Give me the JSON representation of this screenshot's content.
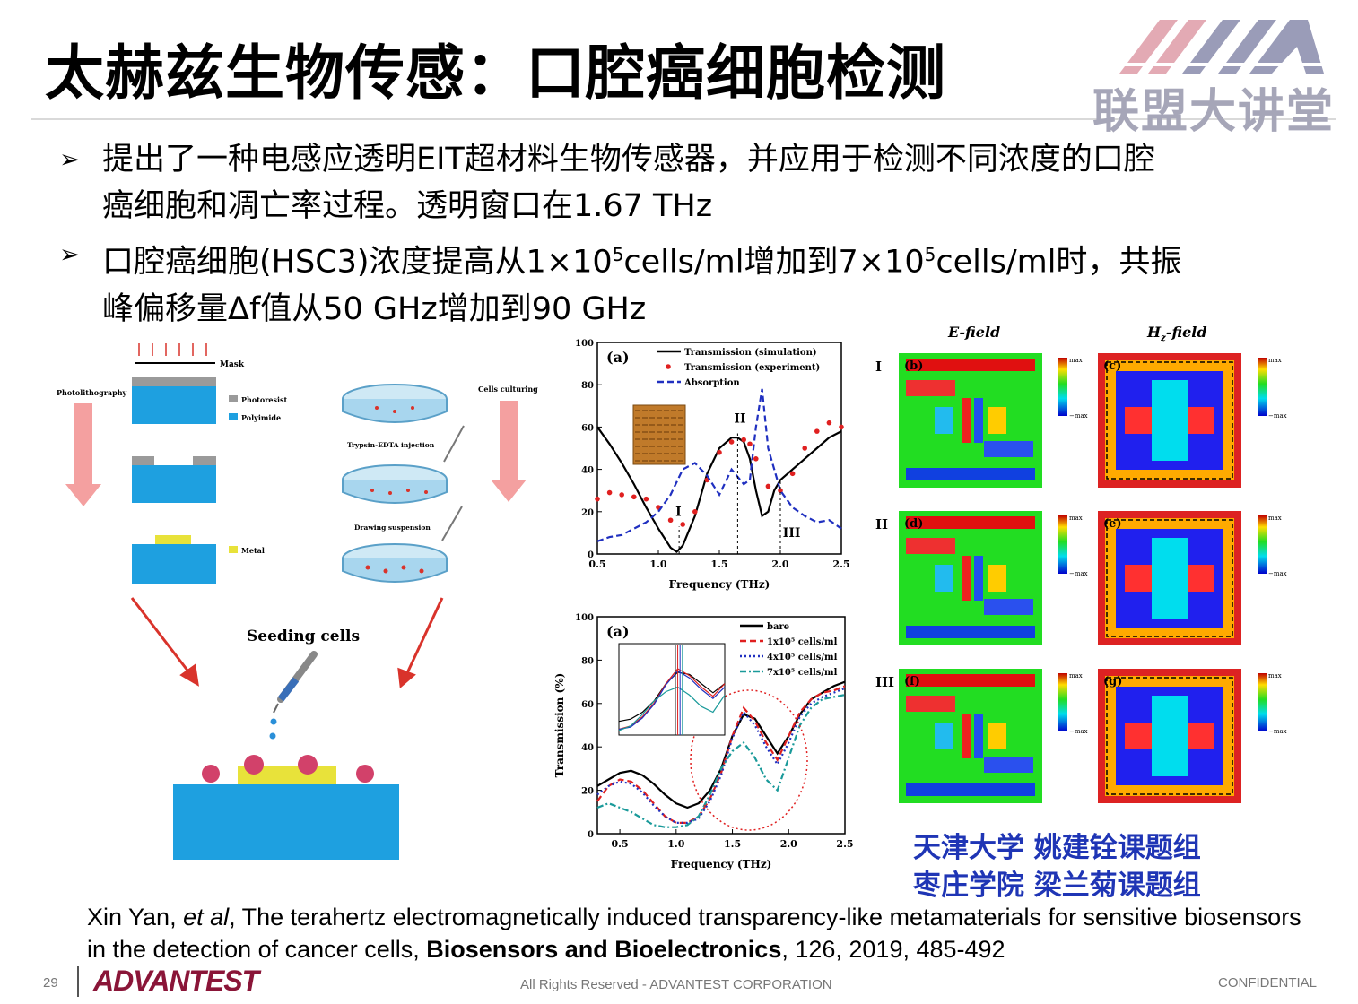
{
  "slide": {
    "title": "太赫兹生物传感：口腔癌细胞检测",
    "logo_text": "联盟大讲堂",
    "page_number": "29",
    "brand": "ADVANTEST",
    "rights": "All Rights Reserved - ADVANTEST CORPORATION",
    "confidential": "CONFIDENTIAL"
  },
  "bullets": [
    {
      "mark": "➢",
      "line1": "提出了一种电感应透明EIT超材料生物传感器，并应用于检测不同浓度的口腔",
      "line2": "癌细胞和凋亡率过程。透明窗口在1.67 THz"
    },
    {
      "mark": "➢",
      "line1_a": "口腔癌细胞(HSC3)浓度提高从1×10",
      "line1_sup1": "5",
      "line1_b": "cells/ml增加到7×10",
      "line1_sup2": "5",
      "line1_c": "cells/ml时，共振",
      "line2": "峰偏移量Δf值从50 GHz增加到90 GHz"
    }
  ],
  "fabrication": {
    "mask": "Mask",
    "photolithography": "Photolithography",
    "photoresist": "Photoresist",
    "polyimide": "Polyimide",
    "metal": "Metal",
    "cells_culturing": "Cells culturing",
    "trypsin": "Trypsin-EDTA injection",
    "drawing": "Drawing suspension",
    "seeding": "Seeding cells",
    "colors": {
      "polyimide": "#1ea0e0",
      "photoresist": "#9a9a9a",
      "metal": "#e8e23a",
      "arrow": "#f4a0a0",
      "red_arrow": "#d9332b"
    }
  },
  "chart_data": [
    {
      "type": "line",
      "panel": "(a)",
      "xlabel": "Frequency (THz)",
      "ylabel": "",
      "xlim": [
        0.5,
        2.5
      ],
      "ylim": [
        0,
        100
      ],
      "xticks": [
        "0.5",
        "1.0",
        "1.5",
        "2.0",
        "2.5"
      ],
      "yticks": [
        "0",
        "20",
        "40",
        "60",
        "80",
        "100"
      ],
      "annotations": [
        "I",
        "II",
        "III"
      ],
      "series": [
        {
          "name": "Transmission (simulation)",
          "style": "solid",
          "color": "#000000",
          "x": [
            0.5,
            0.6,
            0.7,
            0.8,
            0.9,
            1.0,
            1.1,
            1.15,
            1.2,
            1.3,
            1.4,
            1.5,
            1.6,
            1.65,
            1.7,
            1.75,
            1.8,
            1.85,
            1.9,
            1.95,
            2.0,
            2.1,
            2.2,
            2.3,
            2.4,
            2.5
          ],
          "y": [
            60,
            52,
            43,
            33,
            22,
            12,
            3,
            1,
            4,
            18,
            38,
            50,
            55,
            55,
            53,
            45,
            30,
            18,
            20,
            30,
            35,
            40,
            45,
            50,
            55,
            58
          ]
        },
        {
          "name": "Transmission (experiment)",
          "style": "dots",
          "color": "#e02020",
          "x": [
            0.5,
            0.6,
            0.7,
            0.8,
            0.9,
            1.0,
            1.1,
            1.2,
            1.3,
            1.4,
            1.5,
            1.6,
            1.7,
            1.75,
            1.8,
            1.9,
            2.0,
            2.1,
            2.2,
            2.3,
            2.4,
            2.5
          ],
          "y": [
            26,
            29,
            28,
            27,
            26,
            22,
            16,
            14,
            20,
            35,
            48,
            53,
            54,
            52,
            45,
            32,
            30,
            38,
            50,
            58,
            62,
            60
          ]
        },
        {
          "name": "Absorption",
          "style": "dashed",
          "color": "#2030c0",
          "x": [
            0.5,
            0.6,
            0.7,
            0.8,
            0.9,
            1.0,
            1.1,
            1.2,
            1.3,
            1.4,
            1.5,
            1.6,
            1.7,
            1.75,
            1.8,
            1.85,
            1.9,
            2.0,
            2.1,
            2.2,
            2.3,
            2.4,
            2.5
          ],
          "y": [
            6,
            8,
            9,
            12,
            15,
            20,
            28,
            40,
            43,
            37,
            28,
            40,
            33,
            35,
            60,
            78,
            50,
            30,
            22,
            18,
            15,
            16,
            12
          ]
        }
      ]
    },
    {
      "type": "line",
      "panel": "(a)",
      "xlabel": "Frequency (THz)",
      "ylabel": "Transmission (%)",
      "xlim": [
        0.3,
        2.5
      ],
      "ylim": [
        0,
        100
      ],
      "xticks": [
        "0.5",
        "1.0",
        "1.5",
        "2.0",
        "2.5"
      ],
      "yticks": [
        "0",
        "20",
        "40",
        "60",
        "80",
        "100"
      ],
      "series": [
        {
          "name": "bare",
          "style": "solid",
          "color": "#000000",
          "x": [
            0.3,
            0.4,
            0.5,
            0.6,
            0.7,
            0.8,
            0.9,
            1.0,
            1.1,
            1.2,
            1.3,
            1.4,
            1.5,
            1.6,
            1.7,
            1.8,
            1.9,
            2.0,
            2.1,
            2.2,
            2.3,
            2.4,
            2.5
          ],
          "y": [
            22,
            25,
            28,
            29,
            27,
            23,
            18,
            14,
            12,
            14,
            20,
            30,
            45,
            55,
            53,
            45,
            37,
            45,
            55,
            62,
            65,
            68,
            70
          ]
        },
        {
          "name": "1x10⁵ cells/ml",
          "style": "dashed",
          "color": "#e02020",
          "x": [
            0.3,
            0.4,
            0.5,
            0.6,
            0.7,
            0.8,
            0.9,
            1.0,
            1.1,
            1.2,
            1.3,
            1.4,
            1.5,
            1.6,
            1.7,
            1.8,
            1.9,
            2.0,
            2.1,
            2.2,
            2.3,
            2.4,
            2.5
          ],
          "y": [
            15,
            22,
            25,
            24,
            20,
            14,
            8,
            5,
            5,
            8,
            16,
            28,
            45,
            58,
            52,
            42,
            34,
            45,
            56,
            62,
            65,
            66,
            68
          ]
        },
        {
          "name": "4x10⁵ cells/ml",
          "style": "dotted",
          "color": "#2030c0",
          "x": [
            0.3,
            0.4,
            0.5,
            0.6,
            0.7,
            0.8,
            0.9,
            1.0,
            1.1,
            1.2,
            1.3,
            1.4,
            1.5,
            1.6,
            1.7,
            1.8,
            1.9,
            2.0,
            2.1,
            2.2,
            2.3,
            2.4,
            2.5
          ],
          "y": [
            18,
            22,
            24,
            23,
            19,
            13,
            8,
            5,
            5,
            7,
            15,
            27,
            44,
            56,
            50,
            40,
            32,
            42,
            54,
            60,
            63,
            65,
            67
          ]
        },
        {
          "name": "7x10⁵ cells/ml",
          "style": "dashdot",
          "color": "#1a9a9a",
          "x": [
            0.3,
            0.4,
            0.5,
            0.6,
            0.7,
            0.8,
            0.9,
            1.0,
            1.1,
            1.2,
            1.3,
            1.4,
            1.5,
            1.6,
            1.7,
            1.8,
            1.9,
            2.0,
            2.1,
            2.2,
            2.3,
            2.4,
            2.5
          ],
          "y": [
            12,
            14,
            12,
            10,
            7,
            4,
            3,
            3,
            4,
            8,
            18,
            30,
            38,
            42,
            35,
            25,
            20,
            35,
            50,
            58,
            62,
            63,
            64
          ]
        }
      ]
    }
  ],
  "fields": {
    "e_field": "E-field",
    "h_field": "H",
    "h_sub": "z",
    "h_suffix": "-field",
    "rows": [
      "I",
      "II",
      "III"
    ],
    "labels_e": [
      "(b)",
      "(d)",
      "(f)"
    ],
    "labels_h": [
      "(c)",
      "(e)",
      "(g)"
    ],
    "max": "max",
    "min": "−max"
  },
  "affiliations": [
    "天津大学 姚建铨课题组",
    "枣庄学院 梁兰菊课题组"
  ],
  "citation": {
    "authors": "Xin Yan, ",
    "etal": "et al",
    "title": ", The terahertz electromagnetically induced transparency-like metamaterials for sensitive biosensors in the detection of cancer cells, ",
    "journal": "Biosensors and Bioelectronics",
    "rest": ", 126, 2019, 485-492"
  }
}
